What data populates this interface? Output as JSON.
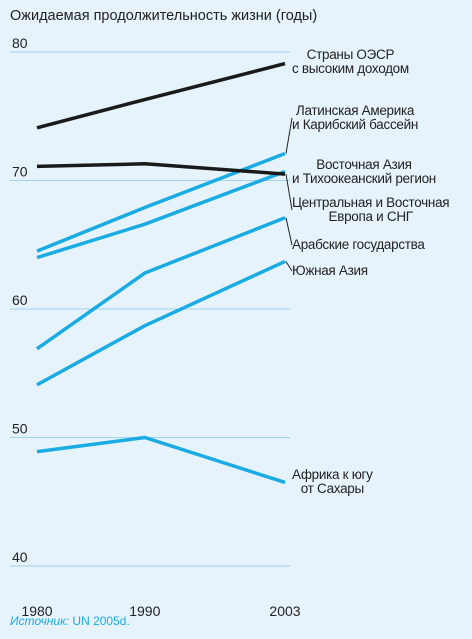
{
  "chart_data": {
    "type": "line",
    "title": "Ожидаемая продолжительность жизни (годы)",
    "x": [
      1980,
      1990,
      2003
    ],
    "xlim": [
      1980,
      2003
    ],
    "xticks": [
      1980,
      1990,
      2003
    ],
    "ylim": [
      40,
      80
    ],
    "yticks": [
      40,
      50,
      60,
      70,
      80
    ],
    "grid": true,
    "series": [
      {
        "name": "Страны ОЭСР\nс высоким доходом",
        "color": "#1a1a1a",
        "values": [
          74.1,
          76.3,
          79.1
        ]
      },
      {
        "name": "Латинская Америка\nи Карибский бассейн",
        "color": "#1aabe3",
        "values": [
          64.5,
          67.9,
          72.1
        ]
      },
      {
        "name": "Восточная Азия\nи Тихоокеанский регион",
        "color": "#1aabe3",
        "values": [
          64.0,
          66.6,
          70.7
        ]
      },
      {
        "name": "Центральная и Восточная\nЕвропа и СНГ",
        "color": "#1a1a1a",
        "values": [
          71.1,
          71.3,
          70.5
        ]
      },
      {
        "name": "Арабские государства",
        "color": "#1aabe3",
        "values": [
          56.9,
          62.8,
          67.1
        ]
      },
      {
        "name": "Южная Азия",
        "color": "#1aabe3",
        "values": [
          54.1,
          58.7,
          63.7
        ]
      },
      {
        "name": "Африка к югу\nот Сахары",
        "color": "#1aabe3",
        "values": [
          48.9,
          50.0,
          46.5
        ]
      }
    ],
    "source_label": "Источник:",
    "source": "UN 2005d."
  }
}
